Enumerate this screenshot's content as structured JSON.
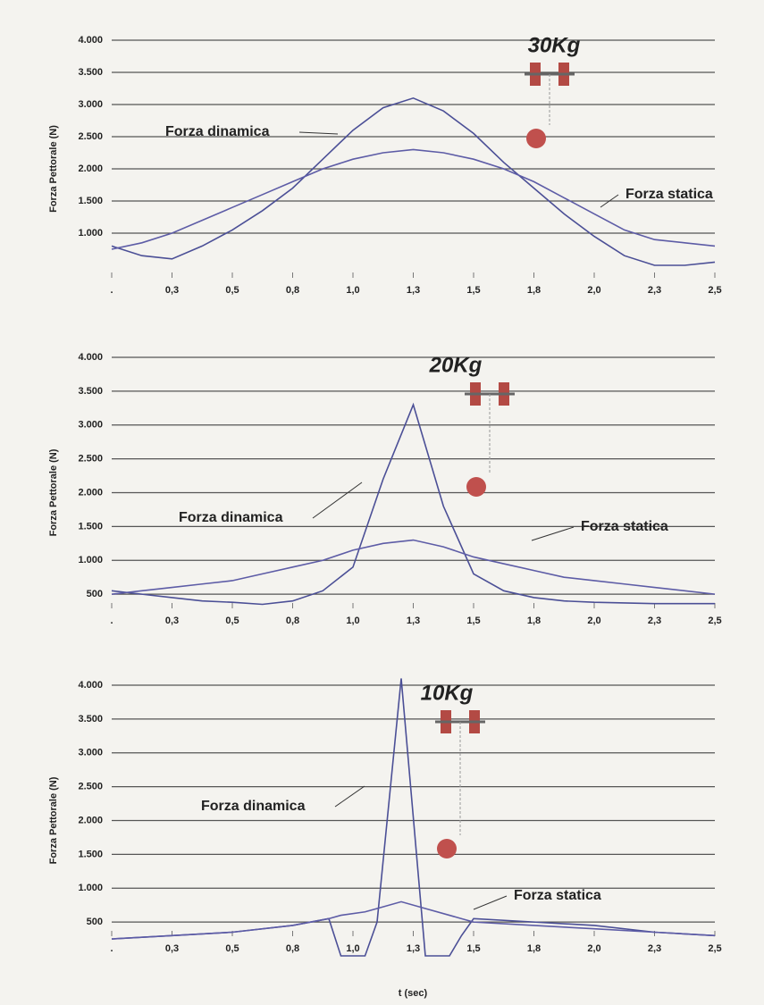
{
  "chart_data": [
    {
      "type": "line",
      "title": "30Kg",
      "y_label": "Forza Pettorale (N)",
      "x": [
        0,
        0.125,
        0.25,
        0.375,
        0.5,
        0.625,
        0.75,
        0.875,
        1.0,
        1.125,
        1.25,
        1.375,
        1.5,
        1.625,
        1.75,
        1.875,
        2.0,
        2.125,
        2.25,
        2.375,
        2.5
      ],
      "series": [
        {
          "name": "Forza dinamica",
          "color": "#4b4f96",
          "values": [
            800,
            650,
            600,
            800,
            1050,
            1350,
            1700,
            2150,
            2600,
            2950,
            3100,
            2900,
            2550,
            2100,
            1700,
            1300,
            950,
            650,
            500,
            500,
            550
          ]
        },
        {
          "name": "Forza statica",
          "color": "#5d5ca6",
          "values": [
            750,
            850,
            1000,
            1200,
            1400,
            1600,
            1800,
            2000,
            2150,
            2250,
            2300,
            2250,
            2150,
            2000,
            1800,
            1550,
            1300,
            1050,
            900,
            850,
            800
          ]
        }
      ],
      "xlim": [
        0,
        2.5
      ],
      "xticks": [
        {
          "value": 0,
          "label": "."
        },
        {
          "value": 0.25,
          "label": "0,3"
        },
        {
          "value": 0.5,
          "label": "0,5"
        },
        {
          "value": 0.75,
          "label": "0,8"
        },
        {
          "value": 1.0,
          "label": "1,0"
        },
        {
          "value": 1.25,
          "label": "1,3"
        },
        {
          "value": 1.5,
          "label": "1,5"
        },
        {
          "value": 1.75,
          "label": "1,8"
        },
        {
          "value": 2.0,
          "label": "2,0"
        },
        {
          "value": 2.25,
          "label": "2,3"
        },
        {
          "value": 2.5,
          "label": "2,5"
        }
      ],
      "ylim": [
        0,
        4000
      ],
      "yticks": [
        {
          "value": 1000,
          "label": "1.000"
        },
        {
          "value": 1500,
          "label": "1.500"
        },
        {
          "value": 2000,
          "label": "2.000"
        },
        {
          "value": 2500,
          "label": "2.500"
        },
        {
          "value": 3000,
          "label": "3.000"
        },
        {
          "value": 3500,
          "label": "3.500"
        },
        {
          "value": 4000,
          "label": "4.000"
        }
      ],
      "grid": true
    },
    {
      "type": "line",
      "title": "20Kg",
      "y_label": "Forza Pettorale (N)",
      "x": [
        0,
        0.125,
        0.25,
        0.375,
        0.5,
        0.625,
        0.75,
        0.875,
        1.0,
        1.125,
        1.25,
        1.375,
        1.5,
        1.625,
        1.75,
        1.875,
        2.0,
        2.125,
        2.25,
        2.375,
        2.5
      ],
      "series": [
        {
          "name": "Forza dinamica",
          "color": "#4b4f96",
          "values": [
            550,
            500,
            450,
            400,
            380,
            350,
            400,
            550,
            900,
            2200,
            3300,
            1800,
            800,
            550,
            450,
            400,
            380,
            370,
            360,
            360,
            360
          ]
        },
        {
          "name": "Forza statica",
          "color": "#5d5ca6",
          "values": [
            500,
            550,
            600,
            650,
            700,
            800,
            900,
            1000,
            1150,
            1250,
            1300,
            1200,
            1050,
            950,
            850,
            750,
            700,
            650,
            600,
            550,
            500
          ]
        }
      ],
      "xlim": [
        0,
        2.5
      ],
      "xticks": [
        {
          "value": 0,
          "label": "."
        },
        {
          "value": 0.25,
          "label": "0,3"
        },
        {
          "value": 0.5,
          "label": "0,5"
        },
        {
          "value": 0.75,
          "label": "0,8"
        },
        {
          "value": 1.0,
          "label": "1,0"
        },
        {
          "value": 1.25,
          "label": "1,3"
        },
        {
          "value": 1.5,
          "label": "1,5"
        },
        {
          "value": 1.75,
          "label": "1,8"
        },
        {
          "value": 2.0,
          "label": "2,0"
        },
        {
          "value": 2.25,
          "label": "2,3"
        },
        {
          "value": 2.5,
          "label": "2,5"
        }
      ],
      "ylim": [
        0,
        4000
      ],
      "yticks": [
        500,
        {
          "value": 1000,
          "label": "1.000"
        },
        {
          "value": 1500,
          "label": "1.500"
        },
        {
          "value": 2000,
          "label": "2.000"
        },
        {
          "value": 2500,
          "label": "2.500"
        },
        {
          "value": 3000,
          "label": "3.000"
        },
        {
          "value": 3500,
          "label": "3.500"
        },
        {
          "value": 4000,
          "label": "4.000"
        }
      ],
      "grid": true
    },
    {
      "type": "line",
      "title": "10Kg",
      "y_label": "Forza Pettorale (N)",
      "x_label": "t (sec)",
      "x": [
        0,
        0.25,
        0.5,
        0.75,
        0.9,
        0.95,
        1.05,
        1.1,
        1.2,
        1.3,
        1.4,
        1.45,
        1.5,
        1.75,
        2.0,
        2.25,
        2.5
      ],
      "series": [
        {
          "name": "Forza dinamica",
          "color": "#4b4f96",
          "values": [
            250,
            300,
            350,
            450,
            550,
            0,
            0,
            500,
            4100,
            0,
            0,
            300,
            550,
            500,
            450,
            350,
            300
          ]
        },
        {
          "name": "Forza statica",
          "color": "#5d5ca6",
          "values": [
            250,
            300,
            350,
            450,
            550,
            600,
            650,
            700,
            800,
            700,
            600,
            550,
            500,
            450,
            400,
            350,
            300
          ]
        }
      ],
      "xlim": [
        0,
        2.5
      ],
      "xticks": [
        {
          "value": 0,
          "label": "."
        },
        {
          "value": 0.25,
          "label": "0,3"
        },
        {
          "value": 0.5,
          "label": "0,5"
        },
        {
          "value": 0.75,
          "label": "0,8"
        },
        {
          "value": 1.0,
          "label": "1,0"
        },
        {
          "value": 1.25,
          "label": "1,3"
        },
        {
          "value": 1.5,
          "label": "1,5"
        },
        {
          "value": 1.75,
          "label": "1,8"
        },
        {
          "value": 2.0,
          "label": "2,0"
        },
        {
          "value": 2.25,
          "label": "2,3"
        },
        {
          "value": 2.5,
          "label": "2,5"
        }
      ],
      "ylim": [
        0,
        4000
      ],
      "yticks": [
        500,
        {
          "value": 1000,
          "label": "1.000"
        },
        {
          "value": 1500,
          "label": "1.500"
        },
        {
          "value": 2000,
          "label": "2.000"
        },
        {
          "value": 2500,
          "label": "2.500"
        },
        {
          "value": 3000,
          "label": "3.000"
        },
        {
          "value": 3500,
          "label": "3.500"
        },
        {
          "value": 4000,
          "label": "4.000"
        }
      ],
      "grid": true
    }
  ]
}
